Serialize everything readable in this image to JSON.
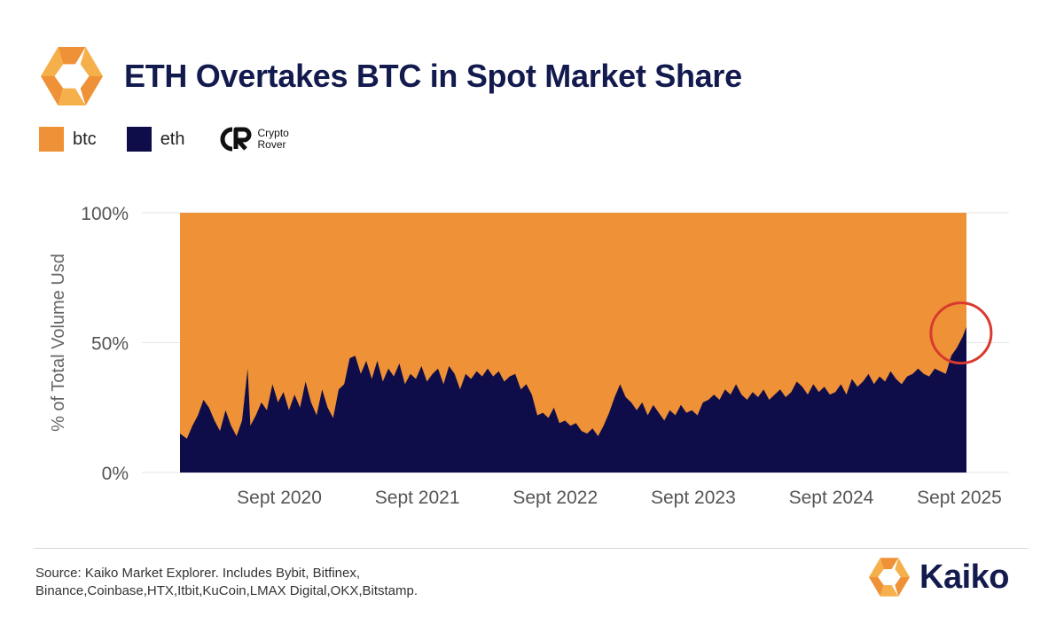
{
  "header": {
    "title": "ETH Overtakes BTC in Spot Market Share",
    "logo_icon": "kaiko-logo-icon"
  },
  "legend": {
    "items": [
      {
        "label": "btc",
        "color": "#ef9136"
      },
      {
        "label": "eth",
        "color": "#0e0d4a"
      }
    ],
    "watermark": {
      "line1": "Crypto",
      "line2": "Rover",
      "icon": "crypto-rover-icon"
    }
  },
  "chart_data": {
    "type": "area",
    "stacked": "percent",
    "ylabel": "% of Total Volume Usd",
    "yticks": [
      "0%",
      "50%",
      "100%"
    ],
    "ylim": [
      0,
      100
    ],
    "xrange": [
      2019.95,
      2025.65
    ],
    "xticks": [
      {
        "label": "Sept 2020",
        "x": 2020.67
      },
      {
        "label": "Sept 2021",
        "x": 2021.67
      },
      {
        "label": "Sept 2022",
        "x": 2022.67
      },
      {
        "label": "Sept 2023",
        "x": 2023.67
      },
      {
        "label": "Sept 2024",
        "x": 2024.67
      },
      {
        "label": "Sept 2025",
        "x": 2025.67
      }
    ],
    "series": [
      {
        "name": "eth",
        "color": "#0e0d4a",
        "points": [
          [
            2019.95,
            15
          ],
          [
            2020.0,
            13
          ],
          [
            2020.04,
            18
          ],
          [
            2020.08,
            22
          ],
          [
            2020.12,
            28
          ],
          [
            2020.16,
            25
          ],
          [
            2020.2,
            20
          ],
          [
            2020.24,
            16
          ],
          [
            2020.28,
            24
          ],
          [
            2020.32,
            18
          ],
          [
            2020.36,
            14
          ],
          [
            2020.4,
            20
          ],
          [
            2020.44,
            40
          ],
          [
            2020.46,
            18
          ],
          [
            2020.5,
            22
          ],
          [
            2020.54,
            27
          ],
          [
            2020.58,
            24
          ],
          [
            2020.62,
            34
          ],
          [
            2020.66,
            27
          ],
          [
            2020.7,
            31
          ],
          [
            2020.74,
            24
          ],
          [
            2020.78,
            30
          ],
          [
            2020.82,
            25
          ],
          [
            2020.86,
            35
          ],
          [
            2020.9,
            27
          ],
          [
            2020.94,
            22
          ],
          [
            2020.98,
            32
          ],
          [
            2021.02,
            25
          ],
          [
            2021.06,
            21
          ],
          [
            2021.1,
            32
          ],
          [
            2021.14,
            34
          ],
          [
            2021.18,
            44
          ],
          [
            2021.22,
            45
          ],
          [
            2021.26,
            38
          ],
          [
            2021.3,
            43
          ],
          [
            2021.34,
            36
          ],
          [
            2021.38,
            43
          ],
          [
            2021.42,
            35
          ],
          [
            2021.46,
            40
          ],
          [
            2021.5,
            37
          ],
          [
            2021.54,
            42
          ],
          [
            2021.58,
            34
          ],
          [
            2021.62,
            38
          ],
          [
            2021.66,
            36
          ],
          [
            2021.7,
            41
          ],
          [
            2021.74,
            35
          ],
          [
            2021.78,
            38
          ],
          [
            2021.82,
            40
          ],
          [
            2021.86,
            34
          ],
          [
            2021.9,
            41
          ],
          [
            2021.94,
            38
          ],
          [
            2021.98,
            32
          ],
          [
            2022.02,
            38
          ],
          [
            2022.06,
            36
          ],
          [
            2022.1,
            39
          ],
          [
            2022.14,
            37
          ],
          [
            2022.18,
            40
          ],
          [
            2022.22,
            37
          ],
          [
            2022.26,
            39
          ],
          [
            2022.3,
            35
          ],
          [
            2022.34,
            37
          ],
          [
            2022.38,
            38
          ],
          [
            2022.42,
            32
          ],
          [
            2022.46,
            34
          ],
          [
            2022.5,
            30
          ],
          [
            2022.54,
            22
          ],
          [
            2022.58,
            23
          ],
          [
            2022.62,
            21
          ],
          [
            2022.66,
            25
          ],
          [
            2022.7,
            19
          ],
          [
            2022.74,
            20
          ],
          [
            2022.78,
            18
          ],
          [
            2022.82,
            19
          ],
          [
            2022.86,
            16
          ],
          [
            2022.9,
            15
          ],
          [
            2022.94,
            17
          ],
          [
            2022.98,
            14
          ],
          [
            2023.02,
            18
          ],
          [
            2023.06,
            23
          ],
          [
            2023.1,
            29
          ],
          [
            2023.14,
            34
          ],
          [
            2023.18,
            29
          ],
          [
            2023.22,
            27
          ],
          [
            2023.26,
            24
          ],
          [
            2023.3,
            27
          ],
          [
            2023.34,
            22
          ],
          [
            2023.38,
            26
          ],
          [
            2023.42,
            23
          ],
          [
            2023.46,
            20
          ],
          [
            2023.5,
            24
          ],
          [
            2023.54,
            22
          ],
          [
            2023.58,
            26
          ],
          [
            2023.62,
            23
          ],
          [
            2023.66,
            24
          ],
          [
            2023.7,
            22
          ],
          [
            2023.74,
            27
          ],
          [
            2023.78,
            28
          ],
          [
            2023.82,
            30
          ],
          [
            2023.86,
            28
          ],
          [
            2023.9,
            32
          ],
          [
            2023.94,
            30
          ],
          [
            2023.98,
            34
          ],
          [
            2024.02,
            30
          ],
          [
            2024.06,
            28
          ],
          [
            2024.1,
            31
          ],
          [
            2024.14,
            29
          ],
          [
            2024.18,
            32
          ],
          [
            2024.22,
            28
          ],
          [
            2024.26,
            30
          ],
          [
            2024.3,
            32
          ],
          [
            2024.34,
            29
          ],
          [
            2024.38,
            31
          ],
          [
            2024.42,
            35
          ],
          [
            2024.46,
            33
          ],
          [
            2024.5,
            30
          ],
          [
            2024.54,
            34
          ],
          [
            2024.58,
            31
          ],
          [
            2024.62,
            33
          ],
          [
            2024.66,
            30
          ],
          [
            2024.7,
            31
          ],
          [
            2024.74,
            34
          ],
          [
            2024.78,
            30
          ],
          [
            2024.82,
            36
          ],
          [
            2024.86,
            33
          ],
          [
            2024.9,
            35
          ],
          [
            2024.94,
            38
          ],
          [
            2024.98,
            34
          ],
          [
            2025.02,
            37
          ],
          [
            2025.06,
            35
          ],
          [
            2025.1,
            39
          ],
          [
            2025.14,
            36
          ],
          [
            2025.18,
            34
          ],
          [
            2025.22,
            37
          ],
          [
            2025.26,
            38
          ],
          [
            2025.3,
            40
          ],
          [
            2025.34,
            38
          ],
          [
            2025.38,
            37
          ],
          [
            2025.42,
            40
          ],
          [
            2025.46,
            39
          ],
          [
            2025.5,
            38
          ],
          [
            2025.54,
            45
          ],
          [
            2025.58,
            48
          ],
          [
            2025.62,
            52
          ],
          [
            2025.65,
            56
          ]
        ]
      },
      {
        "name": "btc",
        "color": "#ef9136",
        "note_fill": "remainder to 100%"
      }
    ],
    "annotation": {
      "type": "circle",
      "x": 2025.63,
      "y": 52,
      "color": "#d93a2f"
    },
    "grid": true,
    "legend_position": "top-left"
  },
  "footer": {
    "source_line1": "Source: Kaiko Market Explorer. Includes Bybit, Bitfinex,",
    "source_line2": "Binance,Coinbase,HTX,Itbit,KuCoin,LMAX Digital,OKX,Bitstamp.",
    "brand": "Kaiko",
    "brand_icon": "kaiko-logo-icon"
  }
}
